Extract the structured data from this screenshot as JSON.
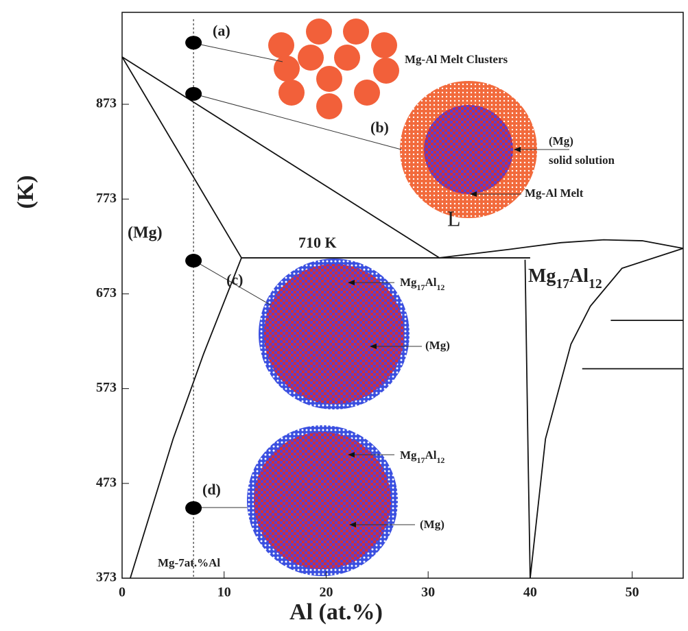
{
  "chart_data": {
    "type": "phase-diagram",
    "x_label": "Al (at.%)",
    "y_label": "(K)",
    "xlim": [
      0,
      55
    ],
    "ylim": [
      373,
      970
    ],
    "xticks": [
      0,
      10,
      20,
      30,
      40,
      50
    ],
    "yticks": [
      373,
      473,
      573,
      673,
      773,
      873
    ],
    "color": "#111",
    "boundaries": [
      {
        "x": [
          0,
          31.1
        ],
        "y": [
          923,
          711
        ]
      },
      {
        "x": [
          0,
          11.7
        ],
        "y": [
          923,
          711
        ]
      },
      {
        "x": [
          11.7,
          40
        ],
        "y": [
          711,
          711
        ]
      },
      {
        "x": [
          11.7,
          8,
          5,
          3,
          0.8
        ],
        "y": [
          711,
          610,
          520,
          450,
          373
        ]
      },
      {
        "x": [
          39.5,
          39.8,
          40
        ],
        "y": [
          709,
          500,
          373
        ]
      },
      {
        "x": [
          40,
          41.5,
          44,
          45.9,
          49,
          55
        ],
        "y": [
          373,
          520,
          620,
          660,
          700,
          721
        ]
      },
      {
        "x": [
          31.1,
          38,
          43,
          47.2,
          51,
          55
        ],
        "y": [
          711,
          720,
          727,
          730,
          729,
          721
        ]
      },
      {
        "x": [
          47.9,
          55
        ],
        "y": [
          645,
          645
        ]
      },
      {
        "x": [
          45.1,
          55
        ],
        "y": [
          594,
          594
        ]
      }
    ],
    "composition": {
      "x": 7,
      "label": "Mg-7at.%Al"
    },
    "states": [
      {
        "label": "(a)",
        "y": 938,
        "notes": [
          "Mg-Al Melt Clusters"
        ]
      },
      {
        "label": "(b)",
        "y": 884,
        "notes": [
          "(Mg)",
          "solid solution",
          "Mg-Al Melt"
        ]
      },
      {
        "label": "(c)",
        "y": 708,
        "notes": [
          "(Mg)"
        ],
        "phase": [
          "Mg",
          "17",
          "Al",
          "12"
        ]
      },
      {
        "label": "(d)",
        "y": 447,
        "notes": [
          "(Mg)"
        ],
        "phase": [
          "Mg",
          "17",
          "Al",
          "12"
        ]
      }
    ],
    "regions": {
      "liquid": "L",
      "mg": "(Mg)",
      "eutectic": "710 K",
      "compound": [
        "Mg",
        "17",
        "Al",
        "12"
      ]
    }
  }
}
